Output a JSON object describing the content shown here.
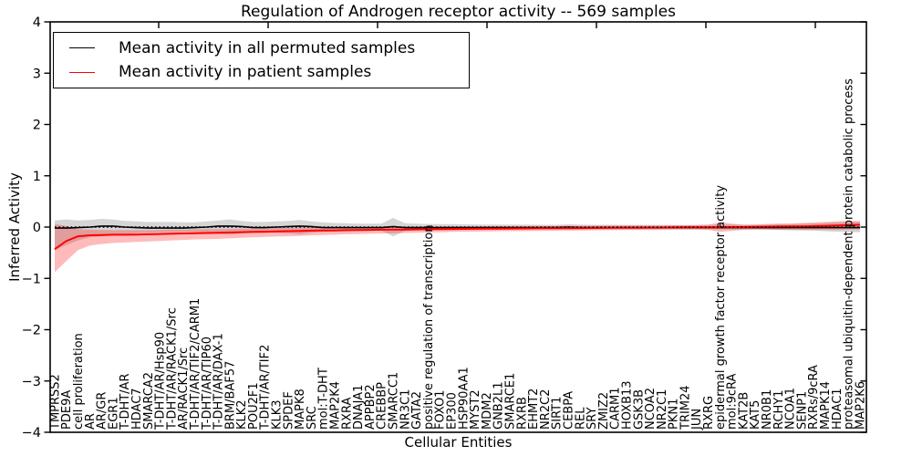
{
  "chart_data": {
    "type": "line",
    "title": "Regulation of Androgen receptor activity -- 569 samples",
    "xlabel": "Cellular Entities",
    "ylabel": "Inferred Activity",
    "ylim": [
      -4,
      4
    ],
    "grid": false,
    "legend_position": "upper left",
    "zero_line": {
      "style": "dotted",
      "color": "#000000",
      "y": 0
    },
    "yticks": [
      {
        "value": 4,
        "label": "4"
      },
      {
        "value": 3,
        "label": "3"
      },
      {
        "value": 2,
        "label": "2"
      },
      {
        "value": 1,
        "label": "1"
      },
      {
        "value": 0,
        "label": "0"
      },
      {
        "value": -1,
        "label": "−1"
      },
      {
        "value": -2,
        "label": "−2"
      },
      {
        "value": -3,
        "label": "−3"
      },
      {
        "value": -4,
        "label": "−4"
      }
    ],
    "categories": [
      "TMPRSS2",
      "PDE9A",
      "cell proliferation",
      "AR",
      "AR/GR",
      "EGR1",
      "T-DHT/AR",
      "HDAC7",
      "SMARCA2",
      "T-DHT/AR/Hsp90",
      "T-DHT/AR/RACK1/Src",
      "AR/RACK1/Src",
      "T-DHT/AR/TIF2/CARM1",
      "T-DHT/AR/TIP60",
      "T-DHT/AR/DAX-1",
      "BRM/BAF57",
      "KLK2",
      "POU2F1",
      "T-DHT/AR/TIF2",
      "KLK3",
      "SPDEF",
      "MAPK8",
      "SRC",
      "mol:T-DHT",
      "MAP2K4",
      "RXRA",
      "DNAJA1",
      "APPBP2",
      "CREBBP",
      "SMARCC1",
      "NR3C1",
      "GATA2",
      "positive regulation of transcription",
      "FOXO1",
      "EP300",
      "HSP90AA1",
      "MYST2",
      "MDM2",
      "GNB2L1",
      "SMARCE1",
      "RXRB",
      "EHMT2",
      "NR2C2",
      "SIRT1",
      "CEBPA",
      "REL",
      "SRY",
      "ZMIZ2",
      "CARM1",
      "HOXB13",
      "GSK3B",
      "NCOA2",
      "NR2C1",
      "PKN1",
      "TRIM24",
      "JUN",
      "RXRG",
      "epidermal growth factor receptor activity",
      "mol:9cRA",
      "KAT2B",
      "KAT5",
      "NR0B1",
      "RCHY1",
      "NCOA1",
      "SENP1",
      "RXRs/9cRA",
      "MAPK14",
      "HDAC1",
      "proteasomal ubiquitin-dependent protein catabolic process",
      "MAP2K6"
    ],
    "series": [
      {
        "name": "Mean activity in all permuted samples",
        "color": "#000000",
        "band_color": "rgba(115,115,115,0.30)",
        "values": [
          -0.02,
          -0.02,
          -0.01,
          0.0,
          0.02,
          0.02,
          0.0,
          -0.01,
          -0.02,
          -0.02,
          -0.02,
          -0.02,
          -0.01,
          0.0,
          0.02,
          0.02,
          0.01,
          -0.01,
          -0.01,
          0.0,
          0.01,
          0.02,
          0.01,
          -0.01,
          -0.01,
          -0.01,
          -0.01,
          -0.01,
          -0.01,
          0.01,
          -0.01,
          -0.01,
          -0.01,
          -0.01,
          -0.01,
          -0.01,
          -0.01,
          -0.01,
          -0.01,
          -0.01,
          -0.01,
          -0.01,
          -0.01,
          -0.01,
          0.0,
          -0.01,
          -0.01,
          -0.01,
          -0.01,
          -0.01,
          -0.01,
          -0.01,
          -0.01,
          -0.01,
          -0.01,
          -0.01,
          -0.01,
          -0.01,
          -0.01,
          -0.01,
          -0.01,
          -0.01,
          -0.01,
          -0.01,
          -0.01,
          -0.01,
          -0.01,
          -0.01,
          -0.01,
          -0.01
        ],
        "band_upper": [
          0.13,
          0.15,
          0.13,
          0.14,
          0.16,
          0.15,
          0.12,
          0.11,
          0.1,
          0.1,
          0.1,
          0.095,
          0.095,
          0.11,
          0.13,
          0.15,
          0.12,
          0.1,
          0.1,
          0.11,
          0.12,
          0.14,
          0.11,
          0.09,
          0.08,
          0.075,
          0.07,
          0.065,
          0.07,
          0.18,
          0.075,
          0.065,
          0.06,
          0.058,
          0.056,
          0.054,
          0.052,
          0.05,
          0.05,
          0.05,
          0.048,
          0.046,
          0.045,
          0.045,
          0.055,
          0.05,
          0.045,
          0.045,
          0.044,
          0.043,
          0.042,
          0.042,
          0.042,
          0.042,
          0.042,
          0.043,
          0.044,
          0.05,
          0.05,
          0.045,
          0.045,
          0.05,
          0.055,
          0.06,
          0.065,
          0.07,
          0.08,
          0.09,
          0.1,
          0.1
        ],
        "band_lower": [
          -0.45,
          -0.35,
          -0.26,
          -0.2,
          -0.18,
          -0.16,
          -0.14,
          -0.12,
          -0.11,
          -0.1,
          -0.1,
          -0.095,
          -0.095,
          -0.11,
          -0.13,
          -0.15,
          -0.12,
          -0.1,
          -0.1,
          -0.11,
          -0.12,
          -0.14,
          -0.11,
          -0.09,
          -0.08,
          -0.075,
          -0.07,
          -0.065,
          -0.07,
          -0.18,
          -0.075,
          -0.065,
          -0.06,
          -0.058,
          -0.056,
          -0.054,
          -0.052,
          -0.05,
          -0.05,
          -0.05,
          -0.048,
          -0.046,
          -0.045,
          -0.045,
          -0.055,
          -0.05,
          -0.045,
          -0.045,
          -0.044,
          -0.043,
          -0.042,
          -0.042,
          -0.042,
          -0.042,
          -0.042,
          -0.043,
          -0.044,
          -0.05,
          -0.05,
          -0.045,
          -0.045,
          -0.05,
          -0.055,
          -0.06,
          -0.065,
          -0.07,
          -0.08,
          -0.09,
          -0.1,
          -0.1
        ]
      },
      {
        "name": "Mean activity in patient samples",
        "color": "#ff0000",
        "band_color": "rgba(255,30,30,0.30)",
        "values": [
          -0.43,
          -0.27,
          -0.18,
          -0.16,
          -0.155,
          -0.15,
          -0.15,
          -0.145,
          -0.14,
          -0.135,
          -0.13,
          -0.125,
          -0.12,
          -0.115,
          -0.11,
          -0.105,
          -0.1,
          -0.095,
          -0.09,
          -0.085,
          -0.08,
          -0.075,
          -0.07,
          -0.068,
          -0.065,
          -0.06,
          -0.058,
          -0.055,
          -0.052,
          -0.05,
          -0.048,
          -0.045,
          -0.042,
          -0.04,
          -0.038,
          -0.036,
          -0.034,
          -0.032,
          -0.03,
          -0.028,
          -0.026,
          -0.025,
          -0.024,
          -0.022,
          -0.02,
          -0.02,
          -0.018,
          -0.016,
          -0.015,
          -0.014,
          -0.012,
          -0.01,
          -0.01,
          -0.008,
          -0.006,
          -0.005,
          -0.004,
          -0.002,
          0.0,
          0.0,
          0.005,
          0.008,
          0.01,
          0.012,
          0.015,
          0.02,
          0.025,
          0.03,
          0.04,
          0.045
        ],
        "band_upper": [
          0.06,
          0.02,
          -0.04,
          -0.05,
          -0.055,
          -0.06,
          -0.06,
          -0.06,
          -0.06,
          -0.055,
          -0.05,
          -0.05,
          -0.045,
          -0.04,
          -0.04,
          -0.035,
          -0.03,
          -0.03,
          -0.025,
          -0.02,
          -0.02,
          -0.015,
          -0.01,
          -0.01,
          -0.008,
          -0.005,
          0.0,
          0.0,
          0.002,
          0.005,
          0.005,
          0.008,
          0.01,
          0.01,
          0.012,
          0.015,
          0.015,
          0.018,
          0.02,
          0.02,
          0.02,
          0.02,
          0.022,
          0.022,
          0.025,
          0.025,
          0.025,
          0.028,
          0.028,
          0.03,
          0.03,
          0.03,
          0.032,
          0.035,
          0.035,
          0.04,
          0.05,
          0.09,
          0.07,
          0.05,
          0.05,
          0.06,
          0.07,
          0.07,
          0.08,
          0.09,
          0.1,
          0.11,
          0.12,
          0.12
        ],
        "band_lower": [
          -0.88,
          -0.66,
          -0.45,
          -0.36,
          -0.33,
          -0.31,
          -0.3,
          -0.29,
          -0.28,
          -0.27,
          -0.26,
          -0.25,
          -0.24,
          -0.235,
          -0.23,
          -0.22,
          -0.21,
          -0.2,
          -0.19,
          -0.185,
          -0.18,
          -0.17,
          -0.16,
          -0.155,
          -0.15,
          -0.14,
          -0.135,
          -0.13,
          -0.125,
          -0.12,
          -0.115,
          -0.11,
          -0.105,
          -0.1,
          -0.095,
          -0.09,
          -0.088,
          -0.085,
          -0.082,
          -0.08,
          -0.078,
          -0.075,
          -0.072,
          -0.07,
          -0.068,
          -0.065,
          -0.062,
          -0.06,
          -0.06,
          -0.058,
          -0.055,
          -0.055,
          -0.052,
          -0.05,
          -0.05,
          -0.05,
          -0.055,
          -0.095,
          -0.075,
          -0.055,
          -0.05,
          -0.05,
          -0.055,
          -0.055,
          -0.055,
          -0.055,
          -0.055,
          -0.055,
          -0.05,
          -0.05
        ]
      }
    ]
  }
}
